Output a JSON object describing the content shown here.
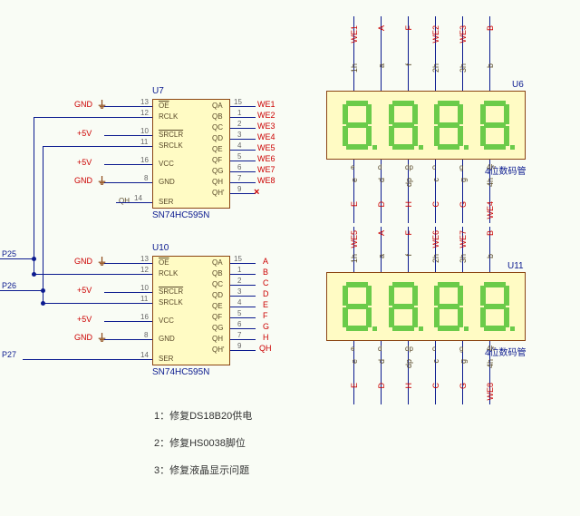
{
  "refs": {
    "u7": "U7",
    "u10": "U10",
    "u6": "U6",
    "u11": "U11"
  },
  "parts": {
    "u7": "SN74HC595N",
    "u10": "SN74HC595N",
    "u6": "4位数码管",
    "u11": "4位数码管"
  },
  "chip_pins": {
    "left": [
      {
        "num": "13",
        "name": "OE",
        "ol": true
      },
      {
        "num": "12",
        "name": "RCLK"
      },
      {
        "num": "10",
        "name": "SRCLR",
        "ol": true
      },
      {
        "num": "11",
        "name": "SRCLK"
      },
      {
        "num": "16",
        "name": "VCC"
      },
      {
        "num": "8",
        "name": "GND"
      },
      {
        "num": "14",
        "name": "SER",
        "pre": "QH"
      }
    ],
    "right": [
      {
        "num": "15",
        "name": "QA"
      },
      {
        "num": "1",
        "name": "QB"
      },
      {
        "num": "2",
        "name": "QC"
      },
      {
        "num": "3",
        "name": "QD"
      },
      {
        "num": "4",
        "name": "QE"
      },
      {
        "num": "5",
        "name": "QF"
      },
      {
        "num": "6",
        "name": "QG"
      },
      {
        "num": "7",
        "name": "QH"
      },
      {
        "num": "9",
        "name": "QH'"
      }
    ]
  },
  "nets_u7": {
    "gnd1": "GND",
    "v1": "+5V",
    "v2": "+5V",
    "gnd2": "GND",
    "q": [
      "WE1",
      "WE2",
      "WE3",
      "WE4",
      "WE5",
      "WE6",
      "WE7",
      "WE8"
    ]
  },
  "nets_u10": {
    "gnd1": "GND",
    "v1": "+5V",
    "v2": "+5V",
    "gnd2": "GND",
    "q": [
      "A",
      "B",
      "C",
      "D",
      "E",
      "F",
      "G",
      "H"
    ],
    "qh2": "QH"
  },
  "ports": {
    "p25": "P25",
    "p26": "P26",
    "p27": "P27"
  },
  "seg_top_u6": {
    "row1": [
      "WE1",
      "A",
      "F",
      "WE2",
      "WE3",
      "B"
    ],
    "row2": [
      "1h",
      "a",
      "f",
      "2h",
      "3h",
      "b"
    ]
  },
  "seg_bot_u6": {
    "row1": [
      "e",
      "d",
      "dp",
      "c",
      "g",
      "4h"
    ],
    "row2": [
      "E",
      "D",
      "H",
      "C",
      "G",
      "WE4"
    ]
  },
  "seg_top_u11": {
    "row1": [
      "WE5",
      "A",
      "F",
      "WE6",
      "WE7",
      "B"
    ],
    "row2": [
      "1h",
      "a",
      "f",
      "2h",
      "3h",
      "b"
    ]
  },
  "seg_bot_u11": {
    "row1": [
      "e",
      "d",
      "dp",
      "c",
      "g",
      "4h"
    ],
    "row2": [
      "E",
      "D",
      "H",
      "C",
      "G",
      "WE8"
    ]
  },
  "notes": {
    "n1": "1：修复DS18B20供电",
    "n2": "2：修复HS0038脚位",
    "n3": "3：修复液晶显示问题"
  }
}
